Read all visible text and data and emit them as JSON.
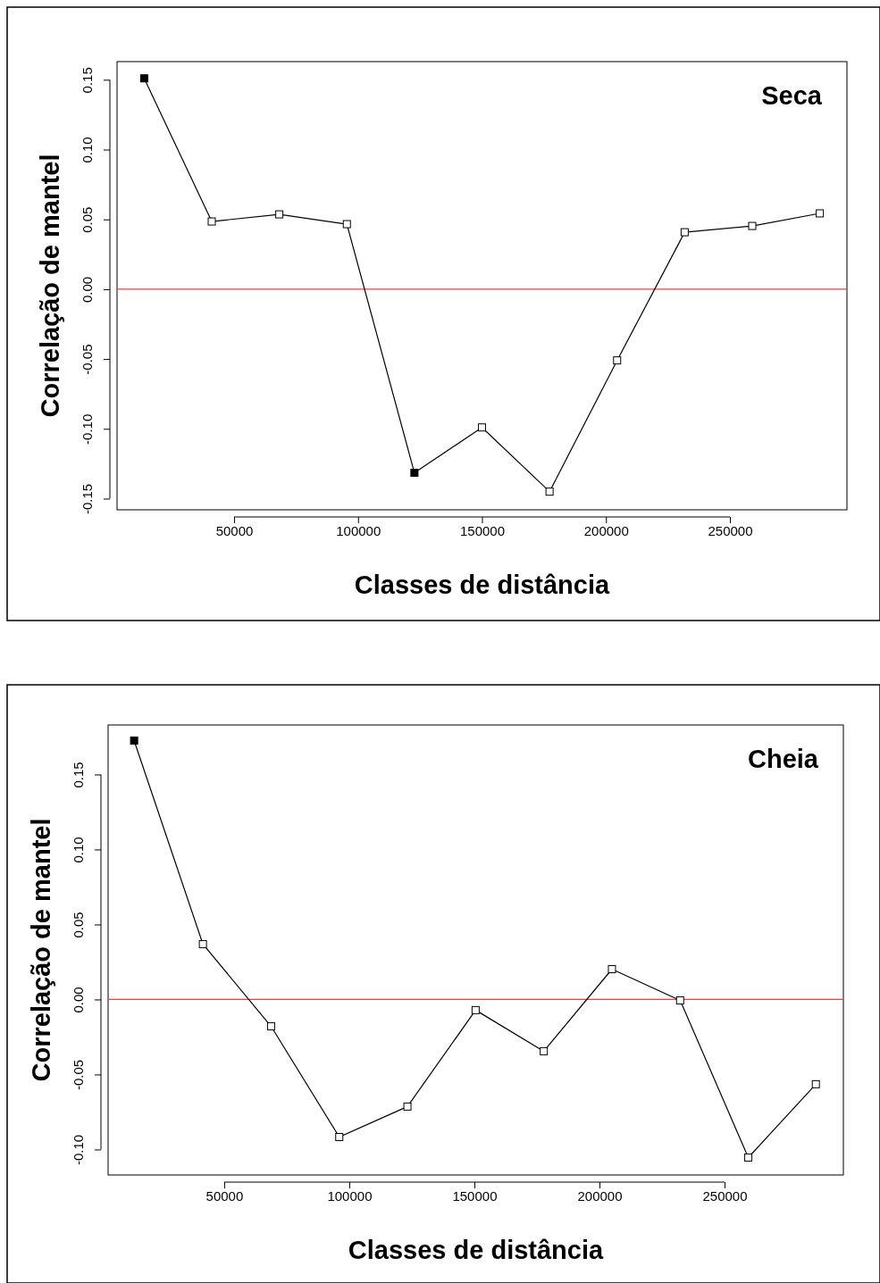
{
  "chart_data": [
    {
      "type": "line",
      "title": "Seca",
      "xlabel": "Classes de distância",
      "ylabel": "Correlação de mantel",
      "x": [
        13750,
        41000,
        68250,
        95500,
        122750,
        150000,
        177250,
        204500,
        231750,
        259000,
        286250
      ],
      "xlim": [
        2800,
        297200
      ],
      "ylim": [
        -0.158,
        0.163
      ],
      "xticks": [
        50000,
        100000,
        150000,
        200000,
        250000
      ],
      "yticks": [
        {
          "value": -0.15,
          "label": "-0.15"
        },
        {
          "value": -0.1,
          "label": "-0.10"
        },
        {
          "value": -0.05,
          "label": "-0.05"
        },
        {
          "value": 0,
          "label": "0.00"
        },
        {
          "value": 0.05,
          "label": "0.05"
        },
        {
          "value": 0.1,
          "label": "0.10"
        },
        {
          "value": 0.15,
          "label": "0.15"
        }
      ],
      "grid": false,
      "ref_lines": [
        {
          "axis": "y",
          "value": 0,
          "color": "#ff3b3b"
        }
      ],
      "series": [
        {
          "color": "#000000",
          "marker": "none",
          "values": [
            0.151,
            0.0485,
            0.0536,
            0.0466,
            -0.1315,
            -0.099,
            -0.145,
            -0.051,
            0.0408,
            0.0453,
            0.0543
          ]
        },
        {
          "type": "scatter",
          "color": "#ffffff",
          "marker": "square",
          "values": [
            null,
            0.0485,
            0.0536,
            0.0466,
            null,
            -0.099,
            -0.145,
            -0.051,
            0.0408,
            0.0453,
            0.0543
          ]
        },
        {
          "type": "scatter",
          "color": "#000000",
          "marker": "square",
          "values": [
            0.151,
            null,
            null,
            null,
            -0.1315,
            null,
            null,
            null,
            null,
            null,
            null
          ]
        }
      ]
    },
    {
      "type": "line",
      "title": "Cheia",
      "xlabel": "Classes de distância",
      "ylabel": "Correlação de mantel",
      "x": [
        14000,
        41500,
        68750,
        96000,
        123250,
        150500,
        177750,
        205000,
        232250,
        259500,
        286500
      ],
      "xlim": [
        3600,
        297500
      ],
      "ylim": [
        -0.117,
        0.183
      ],
      "xticks": [
        50000,
        100000,
        150000,
        200000,
        250000
      ],
      "yticks": [
        {
          "value": -0.1,
          "label": "-0.10"
        },
        {
          "value": -0.05,
          "label": "-0.05"
        },
        {
          "value": 0,
          "label": "0.00"
        },
        {
          "value": 0.05,
          "label": "0.05"
        },
        {
          "value": 0.1,
          "label": "0.10"
        },
        {
          "value": 0.15,
          "label": "0.15"
        }
      ],
      "grid": false,
      "ref_lines": [
        {
          "axis": "y",
          "value": 0,
          "color": "#ff3b3b"
        }
      ],
      "series": [
        {
          "color": "#000000",
          "marker": "none",
          "values": [
            0.1726,
            0.0369,
            -0.0179,
            -0.0917,
            -0.0714,
            -0.0071,
            -0.0345,
            0.0202,
            -0.0006,
            -0.1054,
            -0.0565
          ]
        },
        {
          "type": "scatter",
          "color": "#ffffff",
          "marker": "square",
          "values": [
            null,
            0.0369,
            -0.0179,
            -0.0917,
            -0.0714,
            -0.0071,
            -0.0345,
            0.0202,
            -0.0006,
            -0.1054,
            -0.0565
          ]
        },
        {
          "type": "scatter",
          "color": "#000000",
          "marker": "square",
          "values": [
            0.1726,
            null,
            null,
            null,
            null,
            null,
            null,
            null,
            null,
            null,
            null
          ]
        }
      ]
    }
  ]
}
